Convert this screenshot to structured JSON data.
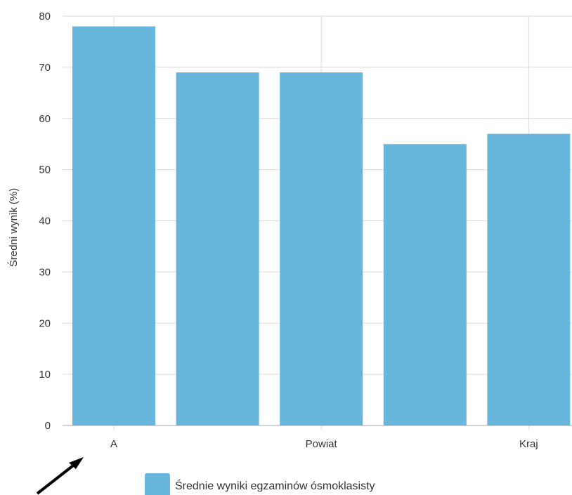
{
  "chart_data": {
    "type": "bar",
    "categories": [
      "A",
      "",
      "Powiat",
      "",
      "Kraj"
    ],
    "series": [
      {
        "name": "Średnie wyniki egzaminów ósmoklasisty",
        "values": [
          78,
          69,
          69,
          55,
          57
        ],
        "color": "#69b6dc"
      }
    ],
    "ylabel": "Średni wynik (%)",
    "xlabel": "",
    "ylim": [
      0,
      80
    ],
    "yticks": [
      0,
      10,
      20,
      30,
      40,
      50,
      60,
      70,
      80
    ],
    "grid": true,
    "legend_position": "bottom"
  }
}
